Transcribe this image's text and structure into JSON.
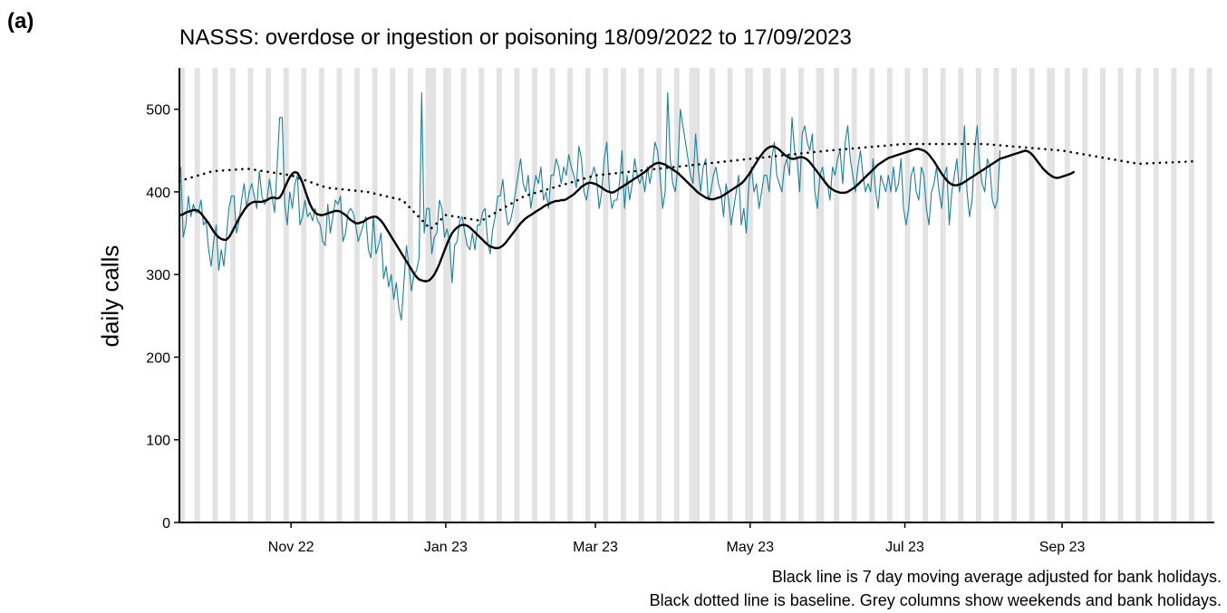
{
  "panel_label": "(a)",
  "chart_data": {
    "type": "line",
    "title": "NASSS: overdose or ingestion or poisoning 18/09/2022 to 17/09/2023",
    "xlabel": "",
    "ylabel": "daily calls",
    "x_start": "2022-09-18",
    "x_end": "2023-09-17",
    "xlim": [
      "2022-09-18",
      "2023-10-31"
    ],
    "ylim": [
      0,
      550
    ],
    "y_ticks": [
      0,
      100,
      200,
      300,
      400,
      500
    ],
    "x_ticks": [
      {
        "date": "2022-11-01",
        "label": "Nov 22"
      },
      {
        "date": "2023-01-01",
        "label": "Jan 23"
      },
      {
        "date": "2023-03-01",
        "label": "Mar 23"
      },
      {
        "date": "2023-05-01",
        "label": "May 23"
      },
      {
        "date": "2023-07-01",
        "label": "Jul 23"
      },
      {
        "date": "2023-09-01",
        "label": "Sep 23"
      }
    ],
    "bank_holidays": [
      "2022-09-19",
      "2022-12-26",
      "2022-12-27",
      "2023-01-02",
      "2023-04-07",
      "2023-04-10",
      "2023-05-01",
      "2023-05-08",
      "2023-05-29",
      "2023-08-28"
    ],
    "grid": false,
    "series": [
      {
        "role": "daily calls",
        "color": "#1a8199",
        "values": [
          430,
          345,
          360,
          395,
          370,
          385,
          375,
          375,
          390,
          360,
          365,
          330,
          310,
          340,
          360,
          305,
          330,
          310,
          345,
          380,
          395,
          395,
          350,
          365,
          390,
          410,
          380,
          400,
          410,
          395,
          380,
          425,
          395,
          385,
          390,
          415,
          395,
          375,
          430,
          490,
          490,
          385,
          360,
          400,
          380,
          410,
          420,
          360,
          370,
          390,
          370,
          375,
          365,
          380,
          365,
          360,
          340,
          335,
          385,
          350,
          370,
          390,
          385,
          395,
          340,
          350,
          375,
          380,
          375,
          360,
          340,
          350,
          360,
          370,
          330,
          320,
          370,
          325,
          335,
          350,
          295,
          310,
          285,
          300,
          270,
          290,
          260,
          245,
          290,
          335,
          310,
          280,
          300,
          305,
          320,
          520,
          350,
          380,
          380,
          325,
          345,
          350,
          390,
          380,
          345,
          355,
          340,
          290,
          335,
          340,
          365,
          370,
          350,
          335,
          330,
          350,
          330,
          360,
          360,
          375,
          380,
          340,
          325,
          355,
          370,
          395,
          395,
          415,
          380,
          360,
          365,
          380,
          400,
          420,
          440,
          410,
          400,
          420,
          380,
          400,
          420,
          410,
          430,
          390,
          400,
          380,
          420,
          420,
          440,
          430,
          410,
          430,
          420,
          445,
          430,
          420,
          405,
          455,
          440,
          400,
          390,
          410,
          420,
          430,
          415,
          380,
          400,
          440,
          460,
          405,
          380,
          390,
          390,
          410,
          450,
          380,
          420,
          390,
          410,
          440,
          420,
          410,
          420,
          400,
          430,
          410,
          430,
          460,
          450,
          420,
          380,
          400,
          520,
          440,
          410,
          400,
          430,
          500,
          480,
          460,
          440,
          420,
          410,
          470,
          430,
          400,
          430,
          440,
          390,
          400,
          420,
          430,
          410,
          400,
          370,
          410,
          390,
          360,
          380,
          400,
          420,
          360,
          380,
          350,
          410,
          430,
          400,
          410,
          380,
          400,
          420,
          420,
          400,
          440,
          460,
          420,
          410,
          400,
          430,
          440,
          420,
          490,
          450,
          440,
          400,
          470,
          480,
          460,
          450,
          470,
          400,
          380,
          420,
          430,
          410,
          410,
          390,
          430,
          420,
          440,
          450,
          410,
          460,
          480,
          440,
          420,
          400,
          430,
          450,
          420,
          400,
          410,
          400,
          440,
          400,
          380,
          420,
          410,
          400,
          420,
          400,
          430,
          400,
          410,
          440,
          380,
          360,
          380,
          420,
          430,
          400,
          390,
          430,
          420,
          380,
          360,
          400,
          410,
          430,
          400,
          380,
          420,
          430,
          360,
          400,
          420,
          440,
          400,
          420,
          480,
          400,
          370,
          390,
          450,
          480,
          430,
          410,
          400,
          440,
          430,
          390,
          380,
          390,
          450
        ]
      },
      {
        "role": "7 day moving average",
        "color": "#000000",
        "values": [
          372,
          373,
          375,
          376,
          377,
          378,
          378,
          377,
          374,
          370,
          366,
          362,
          357,
          352,
          348,
          345,
          343,
          342,
          342,
          345,
          350,
          356,
          362,
          368,
          373,
          378,
          382,
          385,
          387,
          388,
          388,
          388,
          388,
          389,
          390,
          392,
          393,
          393,
          392,
          393,
          398,
          405,
          412,
          418,
          422,
          424,
          423,
          418,
          411,
          402,
          393,
          385,
          379,
          375,
          373,
          372,
          372,
          373,
          374,
          375,
          376,
          377,
          377,
          376,
          374,
          372,
          369,
          366,
          364,
          362,
          362,
          363,
          364,
          366,
          368,
          369,
          370,
          370,
          368,
          365,
          361,
          356,
          351,
          346,
          341,
          336,
          331,
          326,
          321,
          316,
          311,
          306,
          301,
          297,
          294,
          293,
          292,
          292,
          293,
          296,
          300,
          306,
          313,
          321,
          329,
          337,
          344,
          350,
          354,
          357,
          359,
          360,
          360,
          359,
          357,
          354,
          351,
          348,
          345,
          342,
          339,
          336,
          334,
          333,
          332,
          332,
          333,
          335,
          338,
          342,
          346,
          350,
          354,
          358,
          362,
          365,
          368,
          370,
          372,
          374,
          376,
          378,
          380,
          382,
          384,
          385,
          387,
          388,
          389,
          389,
          390,
          390,
          391,
          393,
          395,
          397,
          400,
          403,
          406,
          408,
          410,
          411,
          411,
          410,
          409,
          407,
          405,
          403,
          401,
          400,
          399,
          400,
          402,
          404,
          406,
          408,
          410,
          412,
          414,
          416,
          418,
          420,
          422,
          424,
          427,
          430,
          432,
          434,
          435,
          435,
          434,
          433,
          431,
          429,
          427,
          425,
          423,
          420,
          417,
          414,
          411,
          408,
          405,
          402,
          399,
          397,
          395,
          393,
          392,
          391,
          391,
          392,
          393,
          394,
          396,
          398,
          400,
          402,
          404,
          406,
          408,
          410,
          413,
          417,
          421,
          426,
          431,
          436,
          441,
          445,
          449,
          452,
          454,
          455,
          455,
          453,
          451,
          448,
          445,
          443,
          441,
          440,
          440,
          441,
          442,
          442,
          441,
          439,
          436,
          432,
          428,
          424,
          420,
          416,
          412,
          408,
          405,
          403,
          401,
          400,
          399,
          399,
          399,
          400,
          402,
          404,
          406,
          409,
          412,
          415,
          418,
          421,
          424,
          427,
          430,
          433,
          435,
          437,
          439,
          441,
          442,
          443,
          444,
          445,
          446,
          447,
          448,
          449,
          450,
          451,
          452,
          452,
          451,
          450,
          448,
          445,
          441,
          437,
          432,
          427,
          422,
          418,
          414,
          411,
          409,
          408,
          408,
          409,
          410,
          412,
          414,
          416,
          418,
          420,
          422,
          424,
          426,
          428,
          430,
          432,
          434,
          436,
          438,
          440,
          441,
          442,
          443,
          444,
          445,
          446,
          447,
          448,
          449,
          450,
          449,
          447,
          444,
          440,
          436,
          432,
          428,
          425,
          422,
          420,
          418,
          417,
          417,
          418,
          419,
          420,
          421,
          422,
          424
        ]
      },
      {
        "role": "baseline",
        "color": "#000000",
        "dash": "dotted",
        "points": [
          [
            "2022-09-18",
            413
          ],
          [
            "2022-10-01",
            425
          ],
          [
            "2022-10-15",
            428
          ],
          [
            "2022-11-01",
            420
          ],
          [
            "2022-11-15",
            405
          ],
          [
            "2022-12-01",
            400
          ],
          [
            "2022-12-15",
            390
          ],
          [
            "2022-12-26",
            355
          ],
          [
            "2023-01-01",
            372
          ],
          [
            "2023-01-15",
            365
          ],
          [
            "2023-02-01",
            395
          ],
          [
            "2023-03-01",
            420
          ],
          [
            "2023-04-01",
            430
          ],
          [
            "2023-05-01",
            440
          ],
          [
            "2023-06-01",
            450
          ],
          [
            "2023-07-01",
            458
          ],
          [
            "2023-08-01",
            458
          ],
          [
            "2023-09-01",
            450
          ],
          [
            "2023-10-01",
            434
          ],
          [
            "2023-10-24",
            437
          ]
        ]
      }
    ]
  },
  "notes": [
    "Black line is 7 day moving average adjusted for bank holidays.",
    "Black dotted line is baseline. Grey columns show weekends and bank holidays."
  ]
}
